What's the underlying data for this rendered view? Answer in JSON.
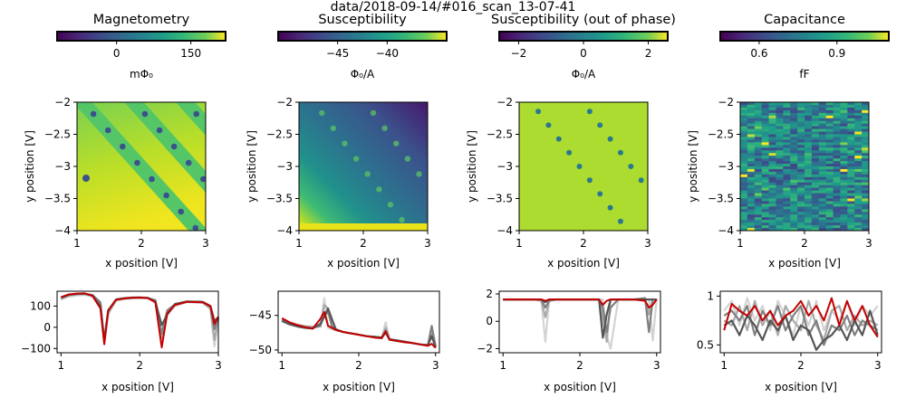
{
  "figure_title": "data/2018-09-14/#016_scan_13-07-41",
  "chart_data": [
    {
      "id": "magnetometry",
      "type": "heatmap",
      "title": "Magnetometry",
      "colorbar": {
        "label": "mΦ₀",
        "range": [
          -120,
          220
        ],
        "ticks": [
          0,
          150
        ]
      },
      "map": {
        "xlabel": "x position [V]",
        "ylabel": "y position [V]",
        "xlim": [
          1,
          3
        ],
        "ylim": [
          -4.0,
          -2.0
        ],
        "xticks": [
          1,
          2,
          3
        ],
        "yticks": [
          -2.0,
          -2.5,
          -3.0,
          -3.5,
          -4.0
        ],
        "pattern": "diagonal-stripes",
        "colormap": "viridis"
      },
      "linecuts": {
        "type": "line",
        "xlabel": "x position [V]",
        "xlim": [
          0.95,
          3.0
        ],
        "ylim": [
          -120,
          170
        ],
        "xticks": [
          1,
          2,
          3
        ],
        "yticks": [
          100,
          0,
          -100
        ],
        "x": [
          1.0,
          1.1,
          1.2,
          1.3,
          1.4,
          1.5,
          1.55,
          1.6,
          1.7,
          1.8,
          1.9,
          2.0,
          2.1,
          2.2,
          2.28,
          2.35,
          2.45,
          2.6,
          2.8,
          2.9,
          2.95,
          3.0
        ],
        "series": [
          {
            "color": "#d3d3d3",
            "values": [
              130,
              145,
              150,
              152,
              145,
              110,
              -60,
              60,
              125,
              132,
              136,
              138,
              136,
              130,
              -40,
              60,
              100,
              118,
              115,
              85,
              -90,
              30
            ]
          },
          {
            "color": "#a9a9a9",
            "values": [
              135,
              150,
              155,
              156,
              150,
              115,
              -75,
              70,
              128,
              135,
              138,
              139,
              138,
              128,
              -50,
              70,
              105,
              120,
              118,
              90,
              -60,
              40
            ]
          },
          {
            "color": "#808080",
            "values": [
              138,
              152,
              157,
              158,
              152,
              118,
              -70,
              75,
              130,
              136,
              139,
              140,
              139,
              126,
              -30,
              80,
              108,
              121,
              119,
              95,
              -10,
              45
            ]
          },
          {
            "color": "#555555",
            "values": [
              140,
              154,
              158,
              159,
              150,
              100,
              -60,
              80,
              131,
              137,
              140,
              141,
              139,
              120,
              10,
              60,
              110,
              122,
              120,
              100,
              30,
              48
            ]
          },
          {
            "color": "#c40000",
            "values": [
              142,
              155,
              159,
              160,
              148,
              90,
              -80,
              78,
              130,
              136,
              139,
              140,
              138,
              118,
              -95,
              65,
              105,
              120,
              118,
              100,
              15,
              50
            ]
          }
        ]
      }
    },
    {
      "id": "susceptibility",
      "type": "heatmap",
      "title": "Susceptibility",
      "colorbar": {
        "label": "Φ₀/A",
        "range": [
          -51,
          -34
        ],
        "ticks": [
          -45,
          -40
        ]
      },
      "map": {
        "xlabel": "x position [V]",
        "ylabel": "y position [V]",
        "xlim": [
          1,
          3
        ],
        "ylim": [
          -4.0,
          -2.0
        ],
        "xticks": [
          1,
          2,
          3
        ],
        "yticks": [
          -2.0,
          -2.5,
          -3.0,
          -3.5,
          -4.0
        ],
        "pattern": "gradient-with-spot-rows",
        "colormap": "viridis"
      },
      "linecuts": {
        "type": "line",
        "xlabel": "x position [V]",
        "xlim": [
          0.95,
          3.05
        ],
        "ylim": [
          -50.4,
          -41.5
        ],
        "xticks": [
          1,
          2,
          3
        ],
        "yticks": [
          -45,
          -50
        ],
        "x": [
          1.0,
          1.1,
          1.2,
          1.3,
          1.4,
          1.5,
          1.55,
          1.6,
          1.65,
          1.7,
          1.8,
          1.9,
          2.0,
          2.1,
          2.2,
          2.3,
          2.35,
          2.4,
          2.5,
          2.6,
          2.7,
          2.8,
          2.9,
          2.95,
          3.0
        ],
        "series": [
          {
            "color": "#d3d3d3",
            "values": [
              -45.5,
              -46.0,
              -46.3,
              -46.5,
              -46.6,
              -46.6,
              -42.5,
              -46.8,
              -47.0,
              -47.1,
              -47.4,
              -47.6,
              -47.8,
              -48.0,
              -48.1,
              -48.2,
              -46.0,
              -48.4,
              -48.6,
              -48.8,
              -49.0,
              -49.2,
              -49.3,
              -47.0,
              -49.5
            ]
          },
          {
            "color": "#a9a9a9",
            "values": [
              -45.6,
              -46.1,
              -46.4,
              -46.6,
              -46.7,
              -46.6,
              -43.5,
              -44.0,
              -46.8,
              -47.1,
              -47.4,
              -47.6,
              -47.8,
              -48.0,
              -48.1,
              -48.2,
              -46.8,
              -48.4,
              -48.6,
              -48.8,
              -49.0,
              -49.2,
              -49.3,
              -47.5,
              -49.5
            ]
          },
          {
            "color": "#808080",
            "values": [
              -45.7,
              -46.2,
              -46.5,
              -46.7,
              -46.8,
              -46.5,
              -45.0,
              -44.5,
              -46.5,
              -47.1,
              -47.4,
              -47.6,
              -47.8,
              -48.0,
              -48.1,
              -48.2,
              -47.2,
              -48.5,
              -48.6,
              -48.8,
              -49.0,
              -49.2,
              -49.3,
              -46.5,
              -49.5
            ]
          },
          {
            "color": "#555555",
            "values": [
              -45.8,
              -46.3,
              -46.6,
              -46.8,
              -46.9,
              -46.2,
              -45.2,
              -44.0,
              -45.5,
              -47.0,
              -47.4,
              -47.6,
              -47.8,
              -48.0,
              -48.1,
              -48.2,
              -47.5,
              -48.5,
              -48.7,
              -48.8,
              -49.0,
              -49.2,
              -49.3,
              -48.0,
              -49.6
            ]
          },
          {
            "color": "#c40000",
            "values": [
              -45.4,
              -46.0,
              -46.4,
              -46.7,
              -46.9,
              -45.5,
              -44.5,
              -46.5,
              -46.8,
              -47.1,
              -47.4,
              -47.6,
              -47.8,
              -48.0,
              -48.2,
              -48.3,
              -47.3,
              -48.5,
              -48.7,
              -48.9,
              -49.0,
              -49.2,
              -49.4,
              -49.1,
              -49.7
            ]
          }
        ]
      }
    },
    {
      "id": "susceptibility-out-of-phase",
      "type": "heatmap",
      "title": "Susceptibility (out of phase)",
      "colorbar": {
        "label": "Φ₀/A",
        "range": [
          -2.6,
          2.6
        ],
        "ticks": [
          -2,
          0,
          2
        ]
      },
      "map": {
        "xlabel": "x position [V]",
        "ylabel": "y position [V]",
        "xlim": [
          1,
          3
        ],
        "ylim": [
          -4.0,
          -2.0
        ],
        "xticks": [
          1,
          2,
          3
        ],
        "yticks": [
          -2.0,
          -2.5,
          -3.0,
          -3.5,
          -4.0
        ],
        "pattern": "spot-rows",
        "colormap": "viridis"
      },
      "linecuts": {
        "type": "line",
        "xlabel": "x position [V]",
        "xlim": [
          0.95,
          3.05
        ],
        "ylim": [
          -2.3,
          2.2
        ],
        "xticks": [
          1,
          2,
          3
        ],
        "yticks": [
          2,
          0,
          -2
        ],
        "x": [
          1.0,
          1.2,
          1.4,
          1.5,
          1.55,
          1.6,
          1.7,
          1.9,
          2.1,
          2.25,
          2.3,
          2.35,
          2.4,
          2.5,
          2.7,
          2.85,
          2.9,
          2.95,
          3.0
        ],
        "series": [
          {
            "color": "#d3d3d3",
            "values": [
              1.6,
              1.6,
              1.6,
              1.5,
              -1.5,
              1.5,
              1.6,
              1.6,
              1.6,
              1.6,
              1.6,
              -1.0,
              -2.0,
              1.6,
              1.6,
              1.6,
              1.6,
              -1.4,
              1.6
            ]
          },
          {
            "color": "#a9a9a9",
            "values": [
              1.6,
              1.6,
              1.6,
              1.5,
              0.3,
              1.5,
              1.6,
              1.6,
              1.6,
              1.6,
              0.2,
              -1.5,
              1.6,
              1.6,
              1.6,
              1.6,
              0.5,
              1.6,
              1.6
            ]
          },
          {
            "color": "#808080",
            "values": [
              1.6,
              1.6,
              1.6,
              1.6,
              1.0,
              1.5,
              1.6,
              1.6,
              1.6,
              1.6,
              1.0,
              -0.8,
              1.0,
              1.6,
              1.6,
              1.7,
              -0.8,
              1.6,
              1.6
            ]
          },
          {
            "color": "#555555",
            "values": [
              1.6,
              1.6,
              1.6,
              1.6,
              1.4,
              1.6,
              1.6,
              1.6,
              1.6,
              1.6,
              -1.2,
              0.5,
              1.6,
              1.6,
              1.6,
              1.6,
              1.6,
              1.6,
              1.6
            ]
          },
          {
            "color": "#c40000",
            "values": [
              1.6,
              1.6,
              1.6,
              1.6,
              1.5,
              1.6,
              1.6,
              1.6,
              1.6,
              1.6,
              1.2,
              1.5,
              1.6,
              1.6,
              1.6,
              1.5,
              1.0,
              1.2,
              1.6
            ]
          }
        ]
      }
    },
    {
      "id": "capacitance",
      "type": "heatmap",
      "title": "Capacitance",
      "colorbar": {
        "label": "fF",
        "range": [
          0.45,
          1.1
        ],
        "ticks": [
          0.6,
          0.9
        ]
      },
      "map": {
        "xlabel": "x position [V]",
        "ylabel": "y position [V]",
        "xlim": [
          1,
          3
        ],
        "ylim": [
          -4.0,
          -2.0
        ],
        "xticks": [
          1,
          2,
          3
        ],
        "yticks": [
          -2.0,
          -2.5,
          -3.0,
          -3.5,
          -4.0
        ],
        "pattern": "horizontal-noise",
        "colormap": "viridis"
      },
      "linecuts": {
        "type": "line",
        "xlabel": "x position [V]",
        "xlim": [
          0.95,
          3.05
        ],
        "ylim": [
          0.42,
          1.05
        ],
        "xticks": [
          1,
          2,
          3
        ],
        "yticks": [
          1.0,
          0.5
        ],
        "x": [
          1.0,
          1.1,
          1.2,
          1.3,
          1.4,
          1.5,
          1.6,
          1.7,
          1.8,
          1.9,
          2.0,
          2.1,
          2.2,
          2.3,
          2.4,
          2.5,
          2.6,
          2.7,
          2.8,
          2.9,
          3.0
        ],
        "series": [
          {
            "color": "#d3d3d3",
            "values": [
              0.85,
              0.95,
              0.7,
              0.98,
              0.75,
              0.9,
              0.65,
              0.95,
              0.8,
              0.6,
              0.9,
              0.7,
              0.95,
              0.65,
              0.85,
              0.75,
              0.95,
              0.7,
              0.9,
              0.8,
              0.9
            ]
          },
          {
            "color": "#a9a9a9",
            "values": [
              0.75,
              0.7,
              0.9,
              0.65,
              0.95,
              0.7,
              0.85,
              0.6,
              0.9,
              0.75,
              0.65,
              0.95,
              0.7,
              0.55,
              0.85,
              0.9,
              0.65,
              0.8,
              0.7,
              0.75,
              0.7
            ]
          },
          {
            "color": "#808080",
            "values": [
              0.8,
              0.85,
              0.75,
              0.9,
              0.6,
              0.85,
              0.7,
              0.9,
              0.65,
              0.8,
              0.9,
              0.6,
              0.75,
              0.5,
              0.7,
              0.65,
              0.8,
              0.6,
              0.75,
              0.7,
              0.65
            ]
          },
          {
            "color": "#555555",
            "values": [
              0.7,
              0.75,
              0.6,
              0.8,
              0.7,
              0.55,
              0.75,
              0.65,
              0.8,
              0.55,
              0.7,
              0.65,
              0.45,
              0.55,
              0.6,
              0.7,
              0.55,
              0.75,
              0.6,
              0.85,
              0.6
            ]
          },
          {
            "color": "#c40000",
            "values": [
              0.65,
              0.92,
              0.85,
              0.8,
              0.9,
              0.75,
              0.85,
              0.7,
              0.8,
              0.85,
              0.95,
              0.8,
              0.9,
              0.75,
              0.98,
              0.7,
              0.95,
              0.75,
              0.9,
              0.7,
              0.58
            ]
          }
        ]
      }
    }
  ]
}
